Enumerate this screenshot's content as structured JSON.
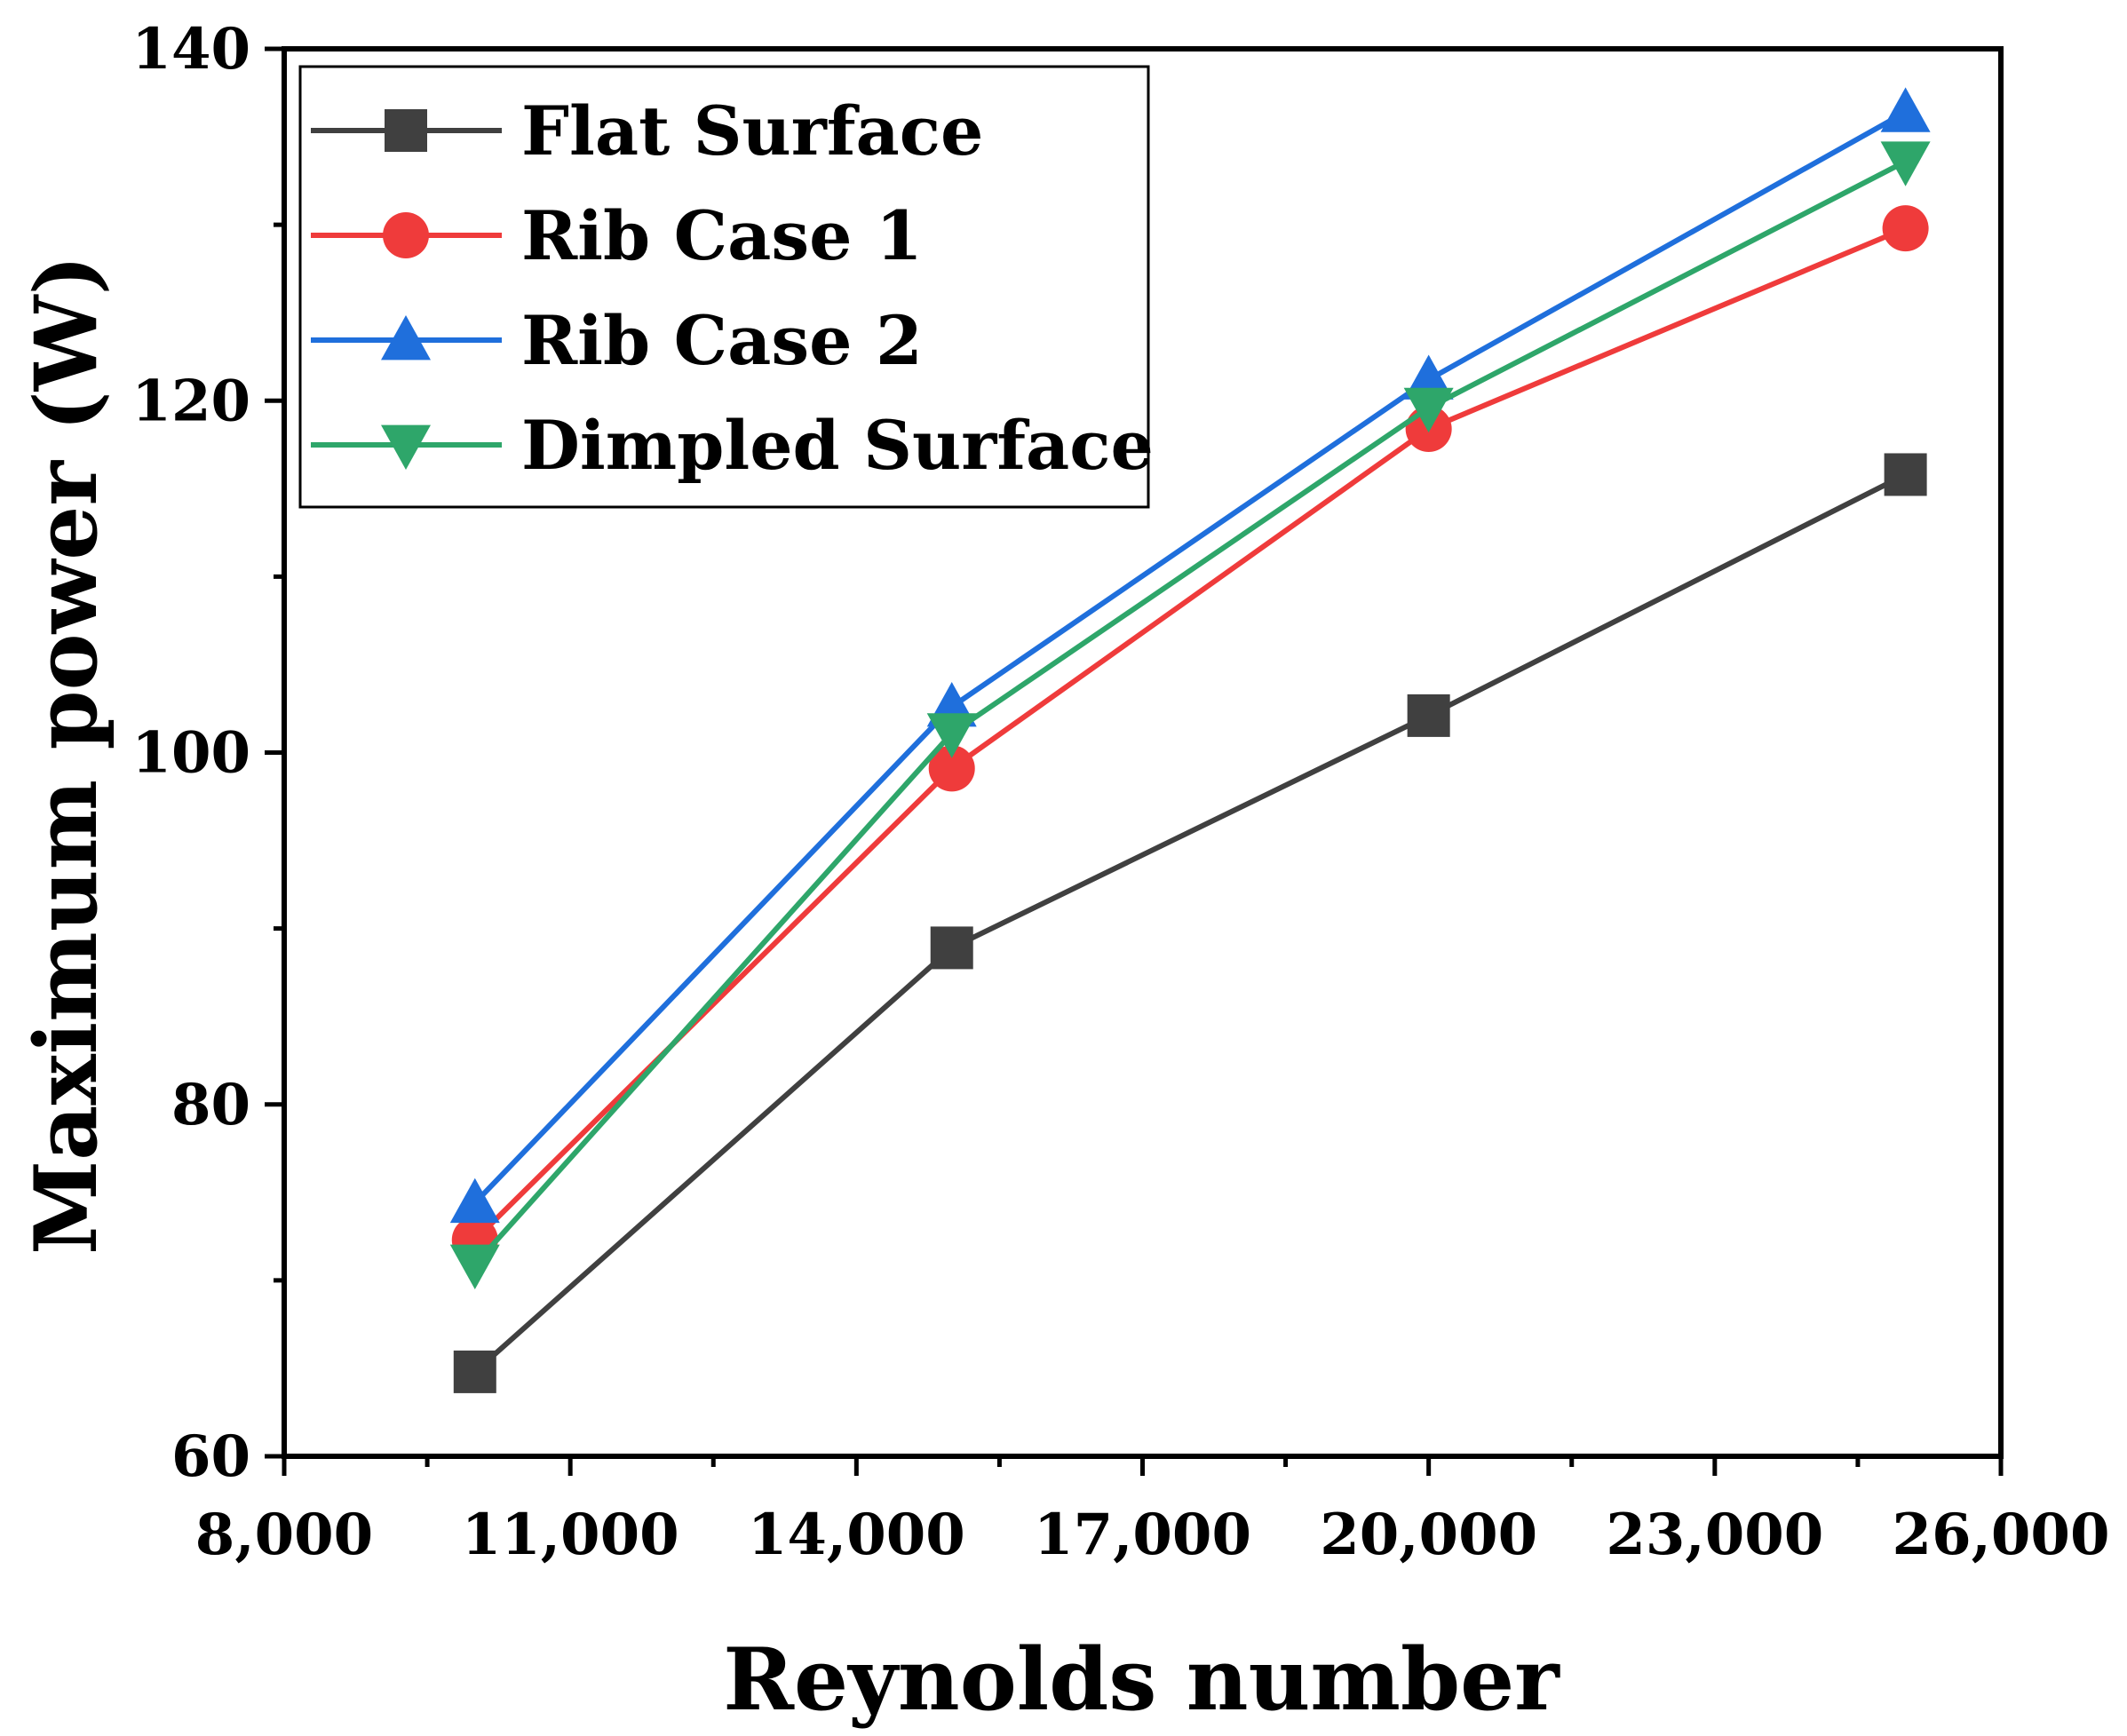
{
  "chart_data": {
    "type": "line",
    "title": "",
    "xlabel": "Reynolds number",
    "ylabel": "Maximum power (W)",
    "x": [
      10000,
      15000,
      20000,
      25000
    ],
    "xlim": [
      8000,
      26000
    ],
    "ylim": [
      60,
      140
    ],
    "xticks": [
      8000,
      11000,
      14000,
      17000,
      20000,
      23000,
      26000
    ],
    "xtick_labels": [
      "8,000",
      "11,000",
      "14,000",
      "17,000",
      "20,000",
      "23,000",
      "26,000"
    ],
    "yticks": [
      60,
      80,
      100,
      120,
      140
    ],
    "ytick_labels": [
      "60",
      "80",
      "100",
      "120",
      "140"
    ],
    "grid": false,
    "legend_position": "top-left",
    "series": [
      {
        "name": "Flat Surface",
        "values": [
          64.8,
          88.9,
          102.1,
          115.8
        ],
        "color": "#404040",
        "marker": "square"
      },
      {
        "name": "Rib Case 1",
        "values": [
          72.3,
          99.1,
          118.4,
          129.8
        ],
        "color": "#ef3b3b",
        "marker": "circle"
      },
      {
        "name": "Rib Case 2",
        "values": [
          74.4,
          102.6,
          121.2,
          136.4
        ],
        "color": "#1f6fdc",
        "marker": "triangle-up"
      },
      {
        "name": "Dimpled Surface",
        "values": [
          70.9,
          101.1,
          119.6,
          133.6
        ],
        "color": "#2ea66a",
        "marker": "triangle-down"
      }
    ]
  }
}
